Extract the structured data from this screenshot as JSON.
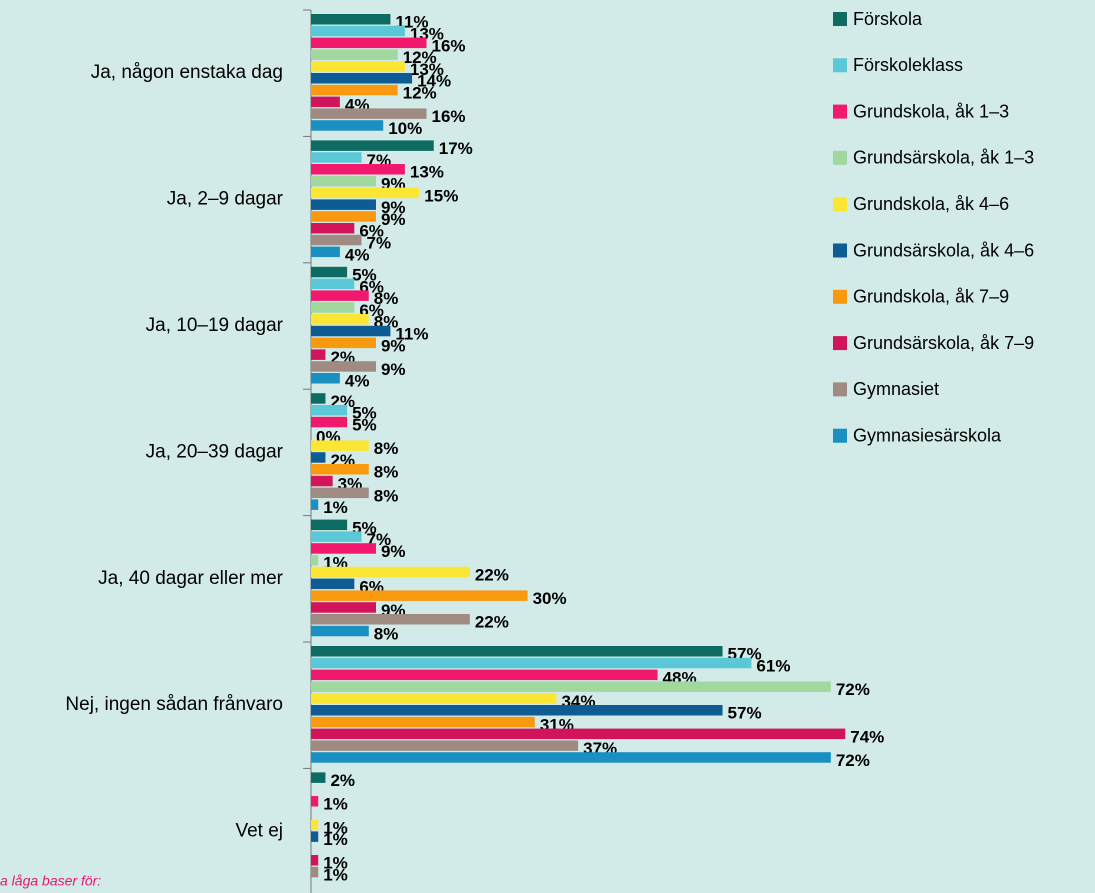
{
  "chart_data": {
    "type": "bar",
    "orientation": "horizontal",
    "categories": [
      "Ja, någon enstaka dag",
      "Ja, 2–9 dagar",
      "Ja, 10–19 dagar",
      "Ja, 20–39 dagar",
      "Ja, 40 dagar eller mer",
      "Nej, ingen sådan frånvaro",
      "Vet ej"
    ],
    "xlim": [
      0,
      75
    ],
    "series": [
      {
        "name": "Förskola",
        "color": "#0e6b62",
        "values": [
          11,
          17,
          5,
          2,
          5,
          57,
          2
        ],
        "value_labels": [
          "11%",
          "17%",
          "5%",
          "2%",
          "5%",
          "57%",
          "2%"
        ]
      },
      {
        "name": "Förskoleklass",
        "color": "#5bc8d8",
        "values": [
          13,
          7,
          6,
          5,
          7,
          61,
          null
        ],
        "value_labels": [
          "13%",
          "7%",
          "6%",
          "5%",
          "7%",
          "61%",
          null
        ]
      },
      {
        "name": "Grundskola, åk 1–3",
        "color": "#f0196e",
        "values": [
          16,
          13,
          8,
          5,
          9,
          48,
          1
        ],
        "value_labels": [
          "16%",
          "13%",
          "8%",
          "5%",
          "9%",
          "48%",
          "1%"
        ]
      },
      {
        "name": "Grundsärskola, åk 1–3",
        "color": "#a0d8a0",
        "values": [
          12,
          9,
          6,
          0,
          1,
          72,
          null
        ],
        "value_labels": [
          "12%",
          "9%",
          "6%",
          "0%",
          "1%",
          "72%",
          null
        ]
      },
      {
        "name": "Grundskola, åk 4–6",
        "color": "#fce634",
        "values": [
          13,
          15,
          8,
          8,
          22,
          34,
          1
        ],
        "value_labels": [
          "13%",
          "15%",
          "8%",
          "8%",
          "22%",
          "34%",
          "1%"
        ]
      },
      {
        "name": "Grundsärskola, åk 4–6",
        "color": "#0f5b93",
        "values": [
          14,
          9,
          11,
          2,
          6,
          57,
          1
        ],
        "value_labels": [
          "14%",
          "9%",
          "11%",
          "2%",
          "6%",
          "57%",
          "1%"
        ]
      },
      {
        "name": "Grundskola, åk 7–9",
        "color": "#f8990f",
        "values": [
          12,
          9,
          9,
          8,
          30,
          31,
          null
        ],
        "value_labels": [
          "12%",
          "9%",
          "9%",
          "8%",
          "30%",
          "31%",
          null
        ]
      },
      {
        "name": "Grundsärskola, åk 7–9",
        "color": "#d2145a",
        "values": [
          4,
          6,
          2,
          3,
          9,
          74,
          1
        ],
        "value_labels": [
          "4%",
          "6%",
          "2%",
          "3%",
          "9%",
          "74%",
          "1%"
        ]
      },
      {
        "name": "Gymnasiet",
        "color": "#a08b82",
        "values": [
          16,
          7,
          9,
          8,
          22,
          37,
          1
        ],
        "value_labels": [
          "16%",
          "7%",
          "9%",
          "8%",
          "22%",
          "37%",
          "1%"
        ]
      },
      {
        "name": "Gymnasiesärskola",
        "color": "#1a8fc2",
        "values": [
          10,
          4,
          4,
          1,
          8,
          72,
          null
        ],
        "value_labels": [
          "10%",
          "4%",
          "4%",
          "1%",
          "8%",
          "72%",
          null
        ]
      }
    ],
    "note": "a låga baser för:"
  }
}
